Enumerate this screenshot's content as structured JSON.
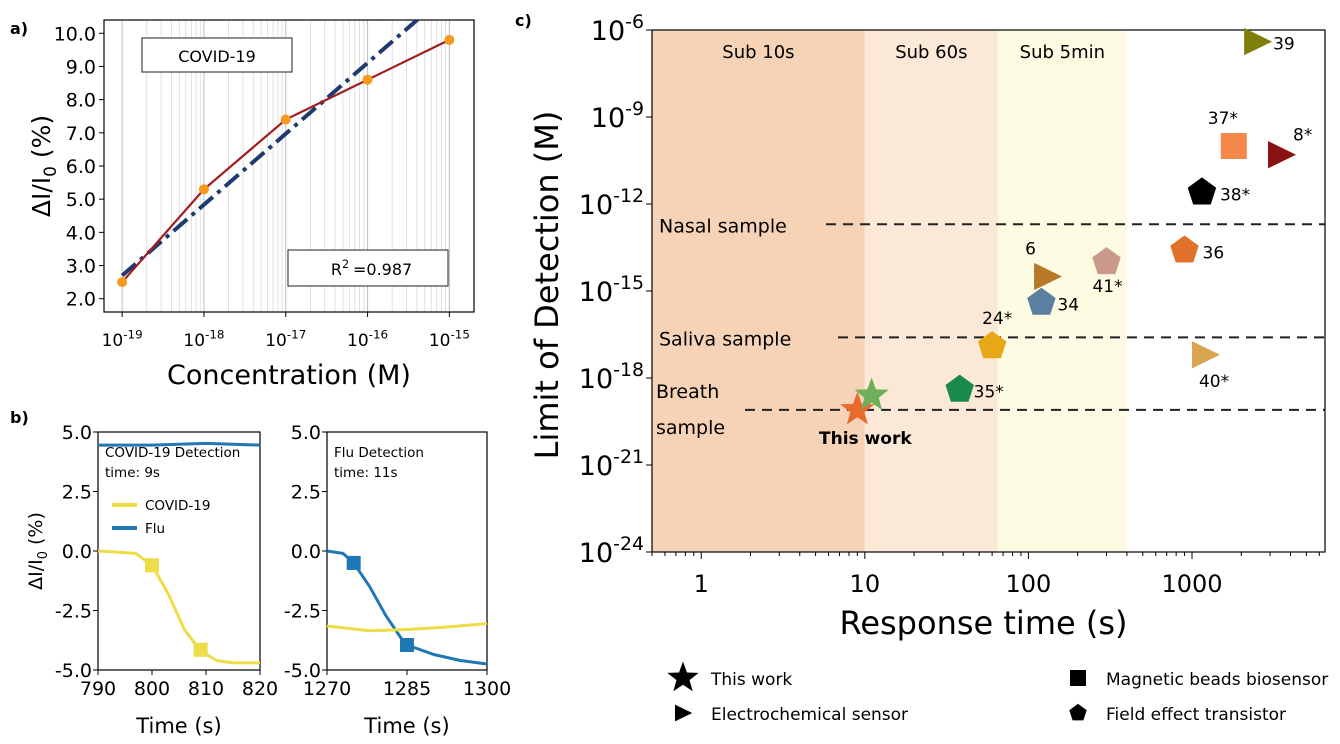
{
  "panels": {
    "a": {
      "label": "a)"
    },
    "b": {
      "label": "b)"
    },
    "c": {
      "label": "c)"
    }
  },
  "chart_data": [
    {
      "id": "a",
      "type": "scatter",
      "xlabel": "Concentration (M)",
      "ylabel": "ΔI/I0 (%)",
      "x_scale": "log",
      "xlim": [
        6e-20,
        2e-15
      ],
      "ylim": [
        1.6,
        10.4
      ],
      "x_ticks": [
        "10-19",
        "10-18",
        "10-17",
        "10-16",
        "10-15"
      ],
      "y_ticks": [
        "2.0",
        "3.0",
        "4.0",
        "5.0",
        "6.0",
        "7.0",
        "8.0",
        "9.0",
        "10.0"
      ],
      "x": [
        1e-19,
        1e-18,
        1e-17,
        1e-16,
        1e-15
      ],
      "y": [
        2.5,
        5.3,
        7.4,
        8.6,
        9.8
      ],
      "fit": {
        "x": [
          1e-19,
          5e-16
        ],
        "y": [
          2.7,
          10.6
        ]
      },
      "annotations": {
        "box_label": "COVID-19",
        "r2_label": "R",
        "r2_exp": "2",
        "r2_value": "=0.987"
      }
    },
    {
      "id": "b-left",
      "type": "line",
      "xlabel": "Time (s)",
      "ylabel": "ΔI/I0 (%)",
      "xlim": [
        790,
        820
      ],
      "ylim": [
        -5.0,
        5.0
      ],
      "x_ticks": [
        "790",
        "800",
        "810",
        "820"
      ],
      "y_ticks": [
        "5.0",
        "2.5",
        "0.0",
        "-2.5",
        "-5.0"
      ],
      "annotation_lines": [
        "COVID-19 Detection",
        "time: 9s"
      ],
      "legend": [
        "COVID-19",
        "Flu"
      ],
      "series": [
        {
          "name": "COVID-19",
          "x": [
            790,
            797,
            800,
            803,
            806,
            809,
            812,
            815,
            820
          ],
          "y": [
            0.0,
            -0.1,
            -0.6,
            -1.8,
            -3.3,
            -4.2,
            -4.6,
            -4.7,
            -4.7
          ]
        },
        {
          "name": "Flu",
          "x": [
            790,
            800,
            810,
            820
          ],
          "y": [
            4.45,
            4.45,
            4.52,
            4.45
          ]
        }
      ],
      "markers": [
        {
          "x": 800,
          "y": -0.6
        },
        {
          "x": 809,
          "y": -4.15
        }
      ]
    },
    {
      "id": "b-right",
      "type": "line",
      "xlabel": "Time (s)",
      "xlim": [
        1270,
        1300
      ],
      "ylim": [
        -5.0,
        5.0
      ],
      "x_ticks": [
        "1270",
        "1285",
        "1300"
      ],
      "y_ticks": [
        "5.0",
        "2.5",
        "0.0",
        "-2.5",
        "-5.0"
      ],
      "annotation_lines": [
        "Flu Detection",
        "time: 11s"
      ],
      "series": [
        {
          "name": "Flu",
          "x": [
            1270,
            1273,
            1275,
            1278,
            1281,
            1284,
            1285,
            1290,
            1295,
            1300
          ],
          "y": [
            0.0,
            -0.1,
            -0.5,
            -1.5,
            -2.7,
            -3.7,
            -3.95,
            -4.35,
            -4.6,
            -4.75
          ]
        },
        {
          "name": "COVID-19",
          "x": [
            1270,
            1278,
            1285,
            1292,
            1300
          ],
          "y": [
            -3.15,
            -3.35,
            -3.3,
            -3.2,
            -3.05
          ]
        }
      ],
      "markers": [
        {
          "x": 1275,
          "y": -0.5
        },
        {
          "x": 1285,
          "y": -3.95
        }
      ]
    },
    {
      "id": "c",
      "type": "scatter",
      "xlabel": "Response time (s)",
      "ylabel": "Limit of Detection (M)",
      "x_scale": "log",
      "y_scale": "log",
      "xlim": [
        0.5,
        6500
      ],
      "ylim_exponent": [
        -24,
        -6
      ],
      "x_ticks": [
        "1",
        "10",
        "100",
        "1000"
      ],
      "y_tick_exponents": [
        "-6",
        "-9",
        "-12",
        "-15",
        "-18",
        "-21",
        "-24"
      ],
      "regions": [
        {
          "label": "Sub 10s",
          "from": 0.5,
          "to": 10,
          "color": "#F6D3B6"
        },
        {
          "label": "Sub 60s",
          "from": 10,
          "to": 65,
          "color": "#FBE8D6"
        },
        {
          "label": "Sub 5min",
          "from": 65,
          "to": 400,
          "color": "#FDFBE2"
        }
      ],
      "reference_lines": [
        {
          "label": "Nasal sample",
          "exp": -12.7
        },
        {
          "label": "Saliva sample",
          "exp": -16.6
        },
        {
          "label": "Breath sample",
          "exp": -19.1
        }
      ],
      "points": [
        {
          "label": "39",
          "x": 2500,
          "exp": -6.4,
          "shape": "triangle",
          "color": "#7F7F0E"
        },
        {
          "label": "37*",
          "x": 1800,
          "exp": -10.0,
          "shape": "square",
          "color": "#F4874B"
        },
        {
          "label": "8*",
          "x": 3500,
          "exp": -10.3,
          "shape": "triangle",
          "color": "#8B1212"
        },
        {
          "label": "38*",
          "x": 1150,
          "exp": -11.6,
          "shape": "pentagon",
          "color": "#000000"
        },
        {
          "label": "36",
          "x": 900,
          "exp": -13.6,
          "shape": "pentagon",
          "color": "#E0712A"
        },
        {
          "label": "41*",
          "x": 300,
          "exp": -14.0,
          "shape": "pentagon",
          "color": "#C99A8C"
        },
        {
          "label": "6",
          "x": 130,
          "exp": -14.5,
          "shape": "triangle",
          "color": "#B8782A"
        },
        {
          "label": "34",
          "x": 120,
          "exp": -15.4,
          "shape": "pentagon",
          "color": "#5B7F9E"
        },
        {
          "label": "24*",
          "x": 60,
          "exp": -16.9,
          "shape": "pentagon",
          "color": "#E8A717"
        },
        {
          "label": "40*",
          "x": 1200,
          "exp": -17.2,
          "shape": "triangle",
          "color": "#D9A54E"
        },
        {
          "label": "35*",
          "x": 38,
          "exp": -18.4,
          "shape": "pentagon",
          "color": "#1A8A4A"
        }
      ],
      "this_work": [
        {
          "x": 9,
          "exp": -19.1,
          "color": "#E96A2D"
        },
        {
          "x": 11,
          "exp": -18.6,
          "color": "#6FAE5B"
        }
      ],
      "this_work_label": "This work",
      "legend": [
        {
          "label": "This work",
          "shape": "star"
        },
        {
          "label": "Electrochemical sensor",
          "shape": "triangle"
        },
        {
          "label": "Magnetic beads biosensor",
          "shape": "square"
        },
        {
          "label": "Field effect transistor",
          "shape": "pentagon"
        }
      ]
    }
  ]
}
